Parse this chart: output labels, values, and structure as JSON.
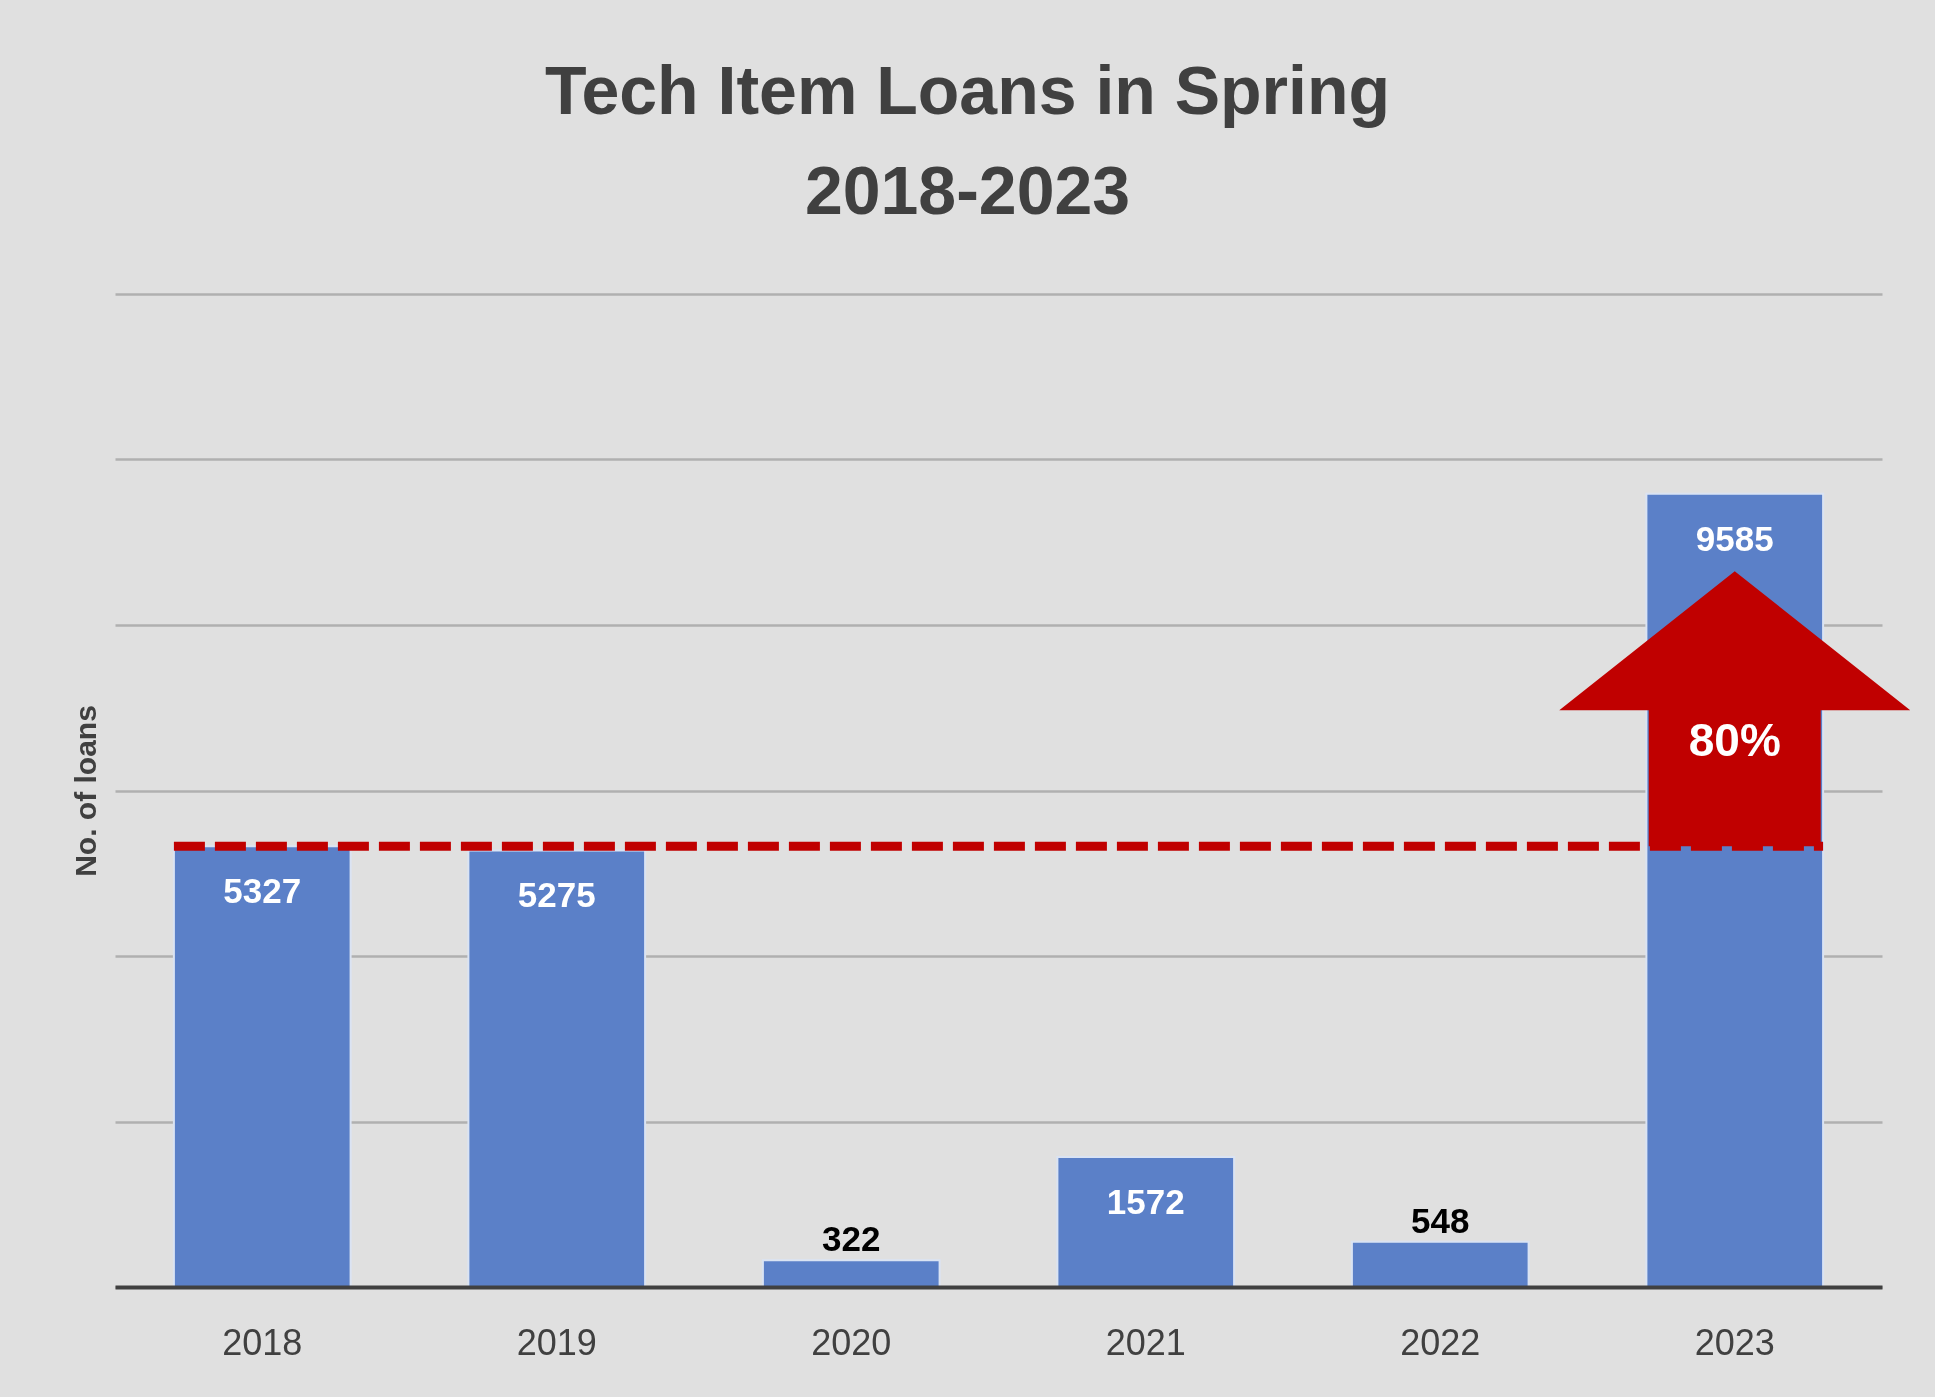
{
  "chart_data": {
    "type": "bar",
    "title": "Tech Item Loans in Spring\n2018-2023",
    "ylabel": "No. of loans",
    "categories": [
      "2018",
      "2019",
      "2020",
      "2021",
      "2022",
      "2023"
    ],
    "values": [
      5327,
      5275,
      322,
      1572,
      548,
      9585
    ],
    "color": "#5b80c8",
    "ylim": [
      0,
      12000
    ],
    "yticks": [
      {
        "value": 0,
        "label": null
      },
      {
        "value": 2000,
        "label": null
      },
      {
        "value": 4000,
        "label": null
      },
      {
        "value": 6000,
        "label": null
      },
      {
        "value": 8000,
        "label": null
      },
      {
        "value": 10000,
        "label": null
      },
      {
        "value": 12000,
        "label": null
      }
    ],
    "grid": "y",
    "tick_labels": "x",
    "data_labels": true,
    "ref_lines": [
      {
        "axis": "y",
        "value": 5327,
        "color": "#c00000",
        "line_style": "dashed"
      }
    ],
    "annotations": [
      "80%"
    ]
  }
}
